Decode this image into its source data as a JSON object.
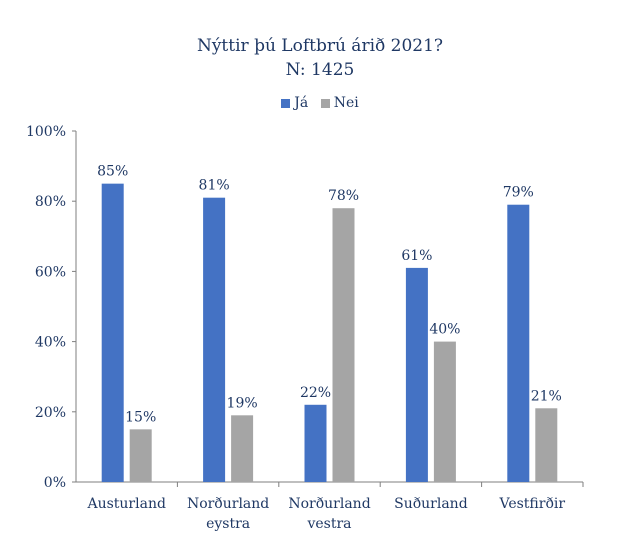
{
  "chart_data": {
    "type": "bar",
    "title": "Nýttir þú Loftbrú árið 2021?",
    "subtitle": "N: 1425",
    "categories": [
      [
        "Austurland"
      ],
      [
        "Norðurland",
        "eystra"
      ],
      [
        "Norðurland",
        "vestra"
      ],
      [
        "Suðurland"
      ],
      [
        "Vestfirðir"
      ]
    ],
    "series": [
      {
        "name": "Já",
        "color": "#4472c4",
        "values": [
          85,
          81,
          22,
          61,
          79
        ]
      },
      {
        "name": "Nei",
        "color": "#a5a5a5",
        "values": [
          15,
          19,
          78,
          40,
          21
        ]
      }
    ],
    "ylim": [
      0,
      100
    ],
    "yticks": [
      "0%",
      "20%",
      "40%",
      "60%",
      "80%",
      "100%"
    ],
    "value_suffix": "%",
    "legend": "top",
    "grid": false
  }
}
